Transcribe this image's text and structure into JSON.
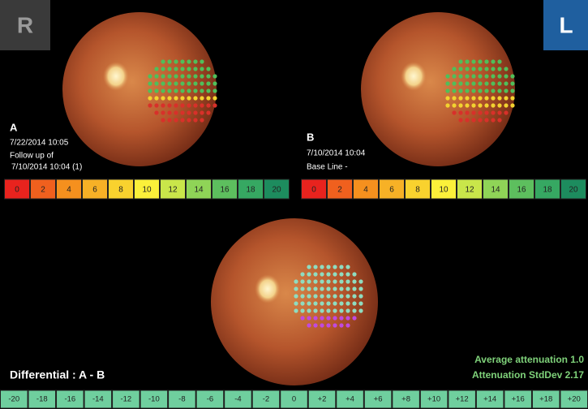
{
  "eye_badges": {
    "left": "R",
    "right": "L"
  },
  "image_a": {
    "label": "A",
    "date": "7/22/2014 10:05",
    "note": "Follow up of",
    "reference": "7/10/2014 10:04 (1)"
  },
  "image_b": {
    "label": "B",
    "date": "7/10/2014 10:04",
    "note": "Base Line -"
  },
  "sensitivity_scale": {
    "labels": [
      "0",
      "2",
      "4",
      "6",
      "8",
      "10",
      "12",
      "14",
      "16",
      "18",
      "20"
    ],
    "colors": [
      "#e8231e",
      "#f0601e",
      "#f5901e",
      "#f7b126",
      "#f9d22e",
      "#fbf03a",
      "#c9e64a",
      "#8fd457",
      "#5dbf5e",
      "#36a862",
      "#1d8c5e"
    ]
  },
  "differential": {
    "title": "Differential : A - B",
    "stats": [
      "Average attenuation 1.0",
      "Attenuation StdDev 2.17"
    ],
    "scale": [
      "-20",
      "-18",
      "-16",
      "-14",
      "-12",
      "-10",
      "-8",
      "-6",
      "-4",
      "-2",
      "0",
      "+2",
      "+4",
      "+6",
      "+8",
      "+10",
      "+12",
      "+14",
      "+16",
      "+18",
      "+20"
    ],
    "scale_color": "#6fcf9e"
  }
}
